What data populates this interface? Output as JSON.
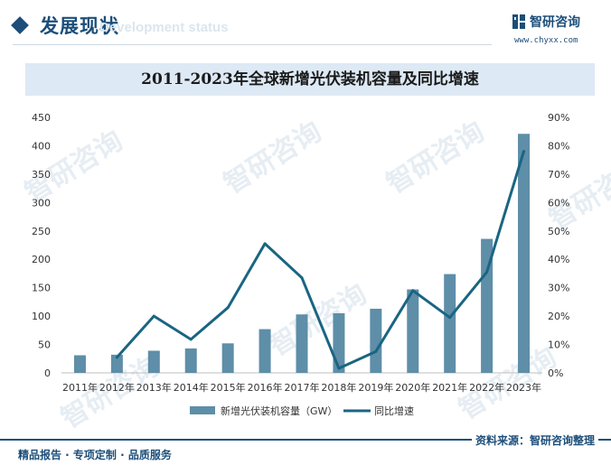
{
  "header": {
    "title": "发展现状",
    "subtitle_en": "Development status"
  },
  "logo": {
    "name": "智研咨询",
    "url": "www.chyxx.com"
  },
  "watermark_text": "智研咨询",
  "chart_data": {
    "type": "bar",
    "title": "2011-2023年全球新增光伏装机容量及同比增速",
    "categories": [
      "2011年",
      "2012年",
      "2013年",
      "2014年",
      "2015年",
      "2016年",
      "2017年",
      "2018年",
      "2019年",
      "2020年",
      "2021年",
      "2022年",
      "2023年"
    ],
    "series": [
      {
        "name": "新增光伏装机容量（GW）",
        "type": "bar",
        "axis": "left",
        "color": "#5e8ea8",
        "values": [
          31,
          32,
          39,
          43,
          52,
          77,
          103,
          105,
          113,
          147,
          174,
          236,
          421
        ]
      },
      {
        "name": "同比增速",
        "type": "line",
        "axis": "right",
        "color": "#1a6582",
        "values": [
          null,
          5.5,
          20,
          11.8,
          23,
          45.5,
          33.5,
          1.6,
          7.5,
          29,
          19.5,
          35.5,
          78
        ]
      }
    ],
    "y_left": {
      "min": 0,
      "max": 450,
      "ticks": [
        "0",
        "50",
        "100",
        "150",
        "200",
        "250",
        "300",
        "350",
        "400",
        "450"
      ]
    },
    "y_right": {
      "min": 0,
      "max": 90,
      "ticks": [
        "0%",
        "10%",
        "20%",
        "30%",
        "40%",
        "50%",
        "60%",
        "70%",
        "80%",
        "90%"
      ]
    },
    "legend_position": "bottom-center"
  },
  "footer": {
    "left": "精品报告 · 专项定制 · 品质服务",
    "right": "资料来源：智研咨询整理"
  }
}
